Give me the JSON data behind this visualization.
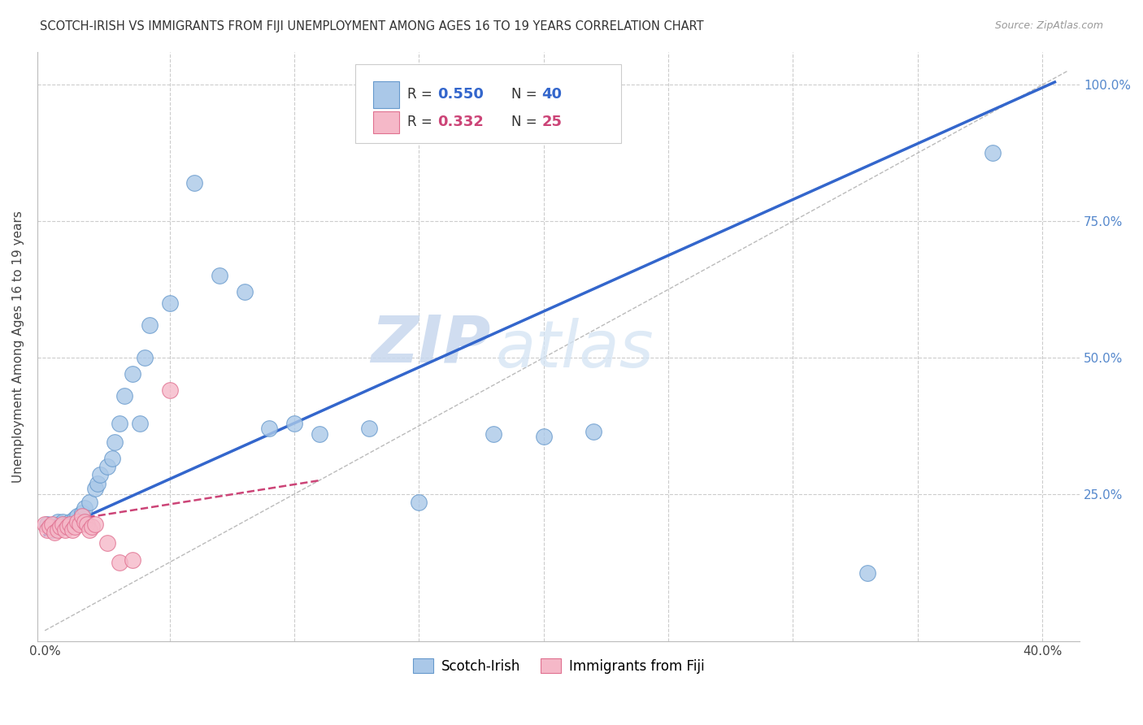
{
  "title": "SCOTCH-IRISH VS IMMIGRANTS FROM FIJI UNEMPLOYMENT AMONG AGES 16 TO 19 YEARS CORRELATION CHART",
  "source": "Source: ZipAtlas.com",
  "ylabel": "Unemployment Among Ages 16 to 19 years",
  "xlim": [
    -0.003,
    0.415
  ],
  "ylim": [
    -0.02,
    1.06
  ],
  "background_color": "#ffffff",
  "grid_color": "#cccccc",
  "watermark_zip": "ZIP",
  "watermark_atlas": "atlas",
  "scotch_irish_color": "#aac8e8",
  "scotch_irish_edge_color": "#6699cc",
  "fiji_color": "#f5b8c8",
  "fiji_edge_color": "#e07090",
  "scotch_irish_line_color": "#3366cc",
  "fiji_line_color": "#cc4477",
  "diagonal_color": "#bbbbbb",
  "R_scotch": 0.55,
  "N_scotch": 40,
  "R_fiji": 0.332,
  "N_fiji": 25,
  "scotch_x": [
    0.001,
    0.003,
    0.004,
    0.005,
    0.006,
    0.007,
    0.008,
    0.009,
    0.01,
    0.012,
    0.013,
    0.015,
    0.016,
    0.018,
    0.02,
    0.021,
    0.022,
    0.025,
    0.027,
    0.028,
    0.03,
    0.032,
    0.035,
    0.038,
    0.04,
    0.042,
    0.05,
    0.06,
    0.07,
    0.08,
    0.09,
    0.1,
    0.11,
    0.13,
    0.15,
    0.18,
    0.2,
    0.22,
    0.33,
    0.38
  ],
  "scotch_y": [
    0.195,
    0.185,
    0.19,
    0.2,
    0.195,
    0.2,
    0.19,
    0.195,
    0.2,
    0.205,
    0.21,
    0.215,
    0.225,
    0.235,
    0.26,
    0.27,
    0.285,
    0.3,
    0.315,
    0.345,
    0.38,
    0.43,
    0.47,
    0.38,
    0.5,
    0.56,
    0.6,
    0.82,
    0.65,
    0.62,
    0.37,
    0.38,
    0.36,
    0.37,
    0.235,
    0.36,
    0.355,
    0.365,
    0.105,
    0.875
  ],
  "fiji_x": [
    0.0,
    0.001,
    0.002,
    0.003,
    0.004,
    0.005,
    0.006,
    0.007,
    0.008,
    0.009,
    0.01,
    0.011,
    0.012,
    0.013,
    0.014,
    0.015,
    0.016,
    0.017,
    0.018,
    0.019,
    0.02,
    0.025,
    0.03,
    0.035,
    0.05
  ],
  "fiji_y": [
    0.195,
    0.185,
    0.19,
    0.195,
    0.18,
    0.185,
    0.19,
    0.195,
    0.185,
    0.19,
    0.195,
    0.185,
    0.19,
    0.2,
    0.195,
    0.21,
    0.2,
    0.195,
    0.185,
    0.19,
    0.195,
    0.16,
    0.125,
    0.13,
    0.44
  ],
  "si_line_x0": 0.0,
  "si_line_x1": 0.405,
  "si_line_y0": 0.175,
  "si_line_y1": 1.005,
  "fiji_line_x0": 0.0,
  "fiji_line_x1": 0.11,
  "fiji_line_y0": 0.195,
  "fiji_line_y1": 0.275
}
